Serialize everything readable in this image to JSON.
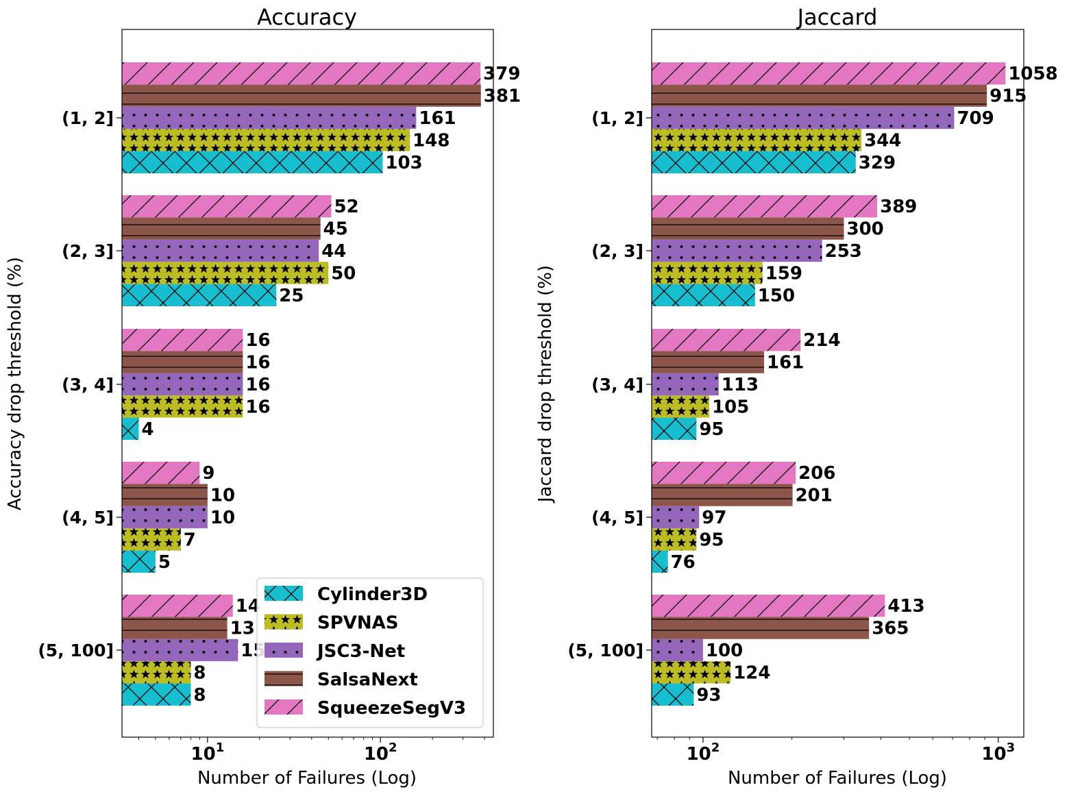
{
  "chart_data": [
    {
      "type": "bar",
      "orientation": "horizontal",
      "title": "Accuracy",
      "xlabel": "Number of Failures (Log)",
      "ylabel": "Accuracy drop threshold (%)",
      "xscale": "log",
      "xlim": [
        3.2,
        450
      ],
      "xticks": [
        {
          "value": 10,
          "base": "10",
          "exp": "1"
        },
        {
          "value": 100,
          "base": "10",
          "exp": "2"
        }
      ],
      "categories": [
        "(1, 2]",
        "(2, 3]",
        "(3, 4]",
        "(4, 5]",
        "(5, 100]"
      ],
      "series": [
        {
          "name": "Cylinder3D",
          "values": [
            103,
            25,
            4,
            5,
            8
          ]
        },
        {
          "name": "SPVNAS",
          "values": [
            148,
            50,
            16,
            7,
            8
          ]
        },
        {
          "name": "JSC3-Net",
          "values": [
            161,
            44,
            16,
            10,
            15
          ]
        },
        {
          "name": "SalsaNext",
          "values": [
            381,
            45,
            16,
            10,
            13
          ]
        },
        {
          "name": "SqueezeSegV3",
          "values": [
            379,
            52,
            16,
            9,
            14
          ]
        }
      ],
      "legend": "bottom-right"
    },
    {
      "type": "bar",
      "orientation": "horizontal",
      "title": "Jaccard",
      "xlabel": "Number of Failures (Log)",
      "ylabel": "Jaccard drop threshold (%)",
      "xscale": "log",
      "xlim": [
        67,
        1220
      ],
      "xticks": [
        {
          "value": 100,
          "base": "10",
          "exp": "2"
        },
        {
          "value": 1000,
          "base": "10",
          "exp": "3"
        }
      ],
      "categories": [
        "(1, 2]",
        "(2, 3]",
        "(3, 4]",
        "(4, 5]",
        "(5, 100]"
      ],
      "series": [
        {
          "name": "Cylinder3D",
          "values": [
            329,
            150,
            95,
            76,
            93
          ]
        },
        {
          "name": "SPVNAS",
          "values": [
            344,
            159,
            105,
            95,
            124
          ]
        },
        {
          "name": "JSC3-Net",
          "values": [
            709,
            253,
            113,
            97,
            100
          ]
        },
        {
          "name": "SalsaNext",
          "values": [
            915,
            300,
            161,
            201,
            365
          ]
        },
        {
          "name": "SqueezeSegV3",
          "values": [
            1058,
            389,
            214,
            206,
            413
          ]
        }
      ]
    }
  ],
  "style": {
    "series_colors": {
      "Cylinder3D": "#17becf",
      "SPVNAS": "#bcbd22",
      "JSC3-Net": "#9467bd",
      "SalsaNext": "#8c564b",
      "SqueezeSegV3": "#e377c2"
    },
    "series_hatches": {
      "Cylinder3D": "cross-x",
      "SPVNAS": "stars",
      "JSC3-Net": "dots",
      "SalsaNext": "horizontal-lines",
      "SqueezeSegV3": "diagonal-lines"
    }
  }
}
